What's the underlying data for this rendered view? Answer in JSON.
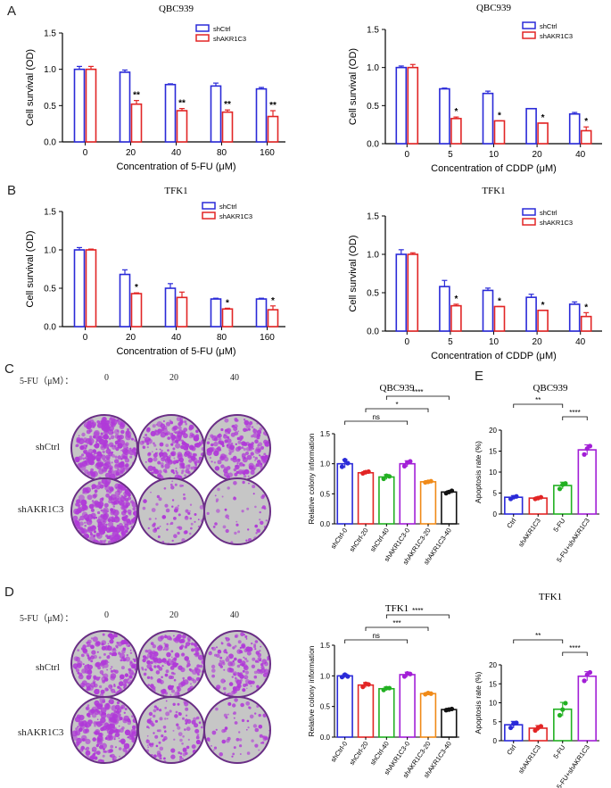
{
  "panel_labels": {
    "A": "A",
    "B": "B",
    "C": "C",
    "D": "D",
    "E": "E"
  },
  "colors": {
    "blue": "#2a2ad8",
    "red": "#e22525",
    "green": "#22b022",
    "purple": "#a21ed6",
    "orange": "#f08a18",
    "black": "#111111",
    "dish": "#b03ad8"
  },
  "plates": {
    "C": {
      "header": "5-FU（μM）：",
      "doses": [
        "0",
        "20",
        "40"
      ],
      "rows": [
        "shCtrl",
        "shAKR1C3"
      ],
      "density": [
        [
          0.62,
          0.5,
          0.42
        ],
        [
          0.62,
          0.12,
          0.06
        ]
      ]
    },
    "D": {
      "header": "5-FU（μM）：",
      "doses": [
        "0",
        "20",
        "40"
      ],
      "rows": [
        "shCtrl",
        "shAKR1C3"
      ],
      "density": [
        [
          0.45,
          0.4,
          0.35
        ],
        [
          0.5,
          0.2,
          0.1
        ]
      ]
    }
  },
  "chart_data": [
    {
      "id": "A1",
      "type": "bar",
      "title": "QBC939",
      "xlabel": "Concentration of 5-FU (μM)",
      "ylabel": "Cell survival (OD)",
      "categories": [
        "0",
        "20",
        "40",
        "80",
        "160"
      ],
      "ylim": [
        0,
        1.5
      ],
      "yticks": [
        "0.0",
        "0.5",
        "1.0",
        "1.5"
      ],
      "series": [
        {
          "name": "shCtrl",
          "color": "#2a2ad8",
          "values": [
            1.0,
            0.96,
            0.79,
            0.77,
            0.73
          ],
          "err": [
            0.04,
            0.03,
            0.01,
            0.04,
            0.02
          ]
        },
        {
          "name": "shAKR1C3",
          "color": "#e22525",
          "values": [
            1.0,
            0.52,
            0.43,
            0.41,
            0.35
          ],
          "err": [
            0.04,
            0.05,
            0.03,
            0.03,
            0.08
          ]
        }
      ],
      "annotations": [
        "",
        "**",
        "**",
        "**",
        "**"
      ]
    },
    {
      "id": "A2",
      "type": "bar",
      "title": "QBC939",
      "xlabel": "Concentration of CDDP (μM)",
      "ylabel": "Cell survival (OD)",
      "categories": [
        "0",
        "5",
        "10",
        "20",
        "40"
      ],
      "ylim": [
        0,
        1.5
      ],
      "yticks": [
        "0.0",
        "0.5",
        "1.0",
        "1.5"
      ],
      "series": [
        {
          "name": "shCtrl",
          "color": "#2a2ad8",
          "values": [
            1.0,
            0.72,
            0.66,
            0.46,
            0.39
          ],
          "err": [
            0.02,
            0.01,
            0.03,
            0.0,
            0.02
          ]
        },
        {
          "name": "shAKR1C3",
          "color": "#e22525",
          "values": [
            1.0,
            0.33,
            0.3,
            0.27,
            0.17
          ],
          "err": [
            0.04,
            0.02,
            0.0,
            0.0,
            0.05
          ]
        }
      ],
      "annotations": [
        "",
        "*",
        "*",
        "*",
        "*"
      ]
    },
    {
      "id": "B1",
      "type": "bar",
      "title": "TFK1",
      "xlabel": "Concentration of 5-FU (μM)",
      "ylabel": "Cell survival (OD)",
      "categories": [
        "0",
        "20",
        "40",
        "80",
        "160"
      ],
      "ylim": [
        0,
        1.5
      ],
      "yticks": [
        "0.0",
        "0.5",
        "1.0",
        "1.5"
      ],
      "series": [
        {
          "name": "shCtrl",
          "color": "#2a2ad8",
          "values": [
            1.0,
            0.68,
            0.5,
            0.36,
            0.36
          ],
          "err": [
            0.03,
            0.06,
            0.06,
            0.01,
            0.01
          ]
        },
        {
          "name": "shAKR1C3",
          "color": "#e22525",
          "values": [
            1.0,
            0.43,
            0.38,
            0.23,
            0.22
          ],
          "err": [
            0.01,
            0.01,
            0.07,
            0.01,
            0.05
          ]
        }
      ],
      "annotations": [
        "",
        "*",
        "",
        "*",
        "*"
      ]
    },
    {
      "id": "B2",
      "type": "bar",
      "title": "TFK1",
      "xlabel": "Concentration of CDDP (μM)",
      "ylabel": "Cell survival (OD)",
      "categories": [
        "0",
        "5",
        "10",
        "20",
        "40"
      ],
      "ylim": [
        0,
        1.5
      ],
      "yticks": [
        "0.0",
        "0.5",
        "1.0",
        "1.5"
      ],
      "series": [
        {
          "name": "shCtrl",
          "color": "#2a2ad8",
          "values": [
            1.0,
            0.58,
            0.53,
            0.44,
            0.35
          ],
          "err": [
            0.06,
            0.08,
            0.03,
            0.04,
            0.03
          ]
        },
        {
          "name": "shAKR1C3",
          "color": "#e22525",
          "values": [
            1.0,
            0.33,
            0.32,
            0.27,
            0.19
          ],
          "err": [
            0.02,
            0.02,
            0.0,
            0.0,
            0.05
          ]
        }
      ],
      "annotations": [
        "",
        "*",
        "*",
        "*",
        "*"
      ]
    },
    {
      "id": "C2",
      "type": "bar",
      "title": "QBC939",
      "ylabel": "Relative colony information",
      "categories": [
        "shCtrl-0",
        "shCtrl-20",
        "shCtrl-40",
        "shAKR1C3-0",
        "shAKR1C3-20",
        "shAKR1C3-40"
      ],
      "colors": [
        "#2a2ad8",
        "#e22525",
        "#22b022",
        "#a21ed6",
        "#f08a18",
        "#111111"
      ],
      "values": [
        1.0,
        0.85,
        0.78,
        1.0,
        0.7,
        0.53
      ],
      "err": [
        0.07,
        0.03,
        0.04,
        0.05,
        0.02,
        0.02
      ],
      "points": [
        [
          0.95,
          1.06,
          1.01
        ],
        [
          0.84,
          0.86,
          0.87
        ],
        [
          0.75,
          0.8,
          0.79
        ],
        [
          0.96,
          1.02,
          1.04
        ],
        [
          0.69,
          0.7,
          0.71
        ],
        [
          0.51,
          0.53,
          0.55
        ]
      ],
      "ylim": [
        0,
        1.5
      ],
      "yticks": [
        "0.0",
        "0.5",
        "1.0",
        "1.5"
      ],
      "brackets": [
        {
          "from": 0,
          "to": 3,
          "label": "ns"
        },
        {
          "from": 1,
          "to": 4,
          "label": "*"
        },
        {
          "from": 2,
          "to": 5,
          "label": "****"
        }
      ]
    },
    {
      "id": "D2",
      "type": "bar",
      "title": "TFK1",
      "ylabel": "Relative colony information",
      "categories": [
        "shCtrl-0",
        "shCtrl-20",
        "shCtrl-40",
        "shAKR1C3-0",
        "shAKR1C3-20",
        "shAKR1C3-40"
      ],
      "colors": [
        "#2a2ad8",
        "#e22525",
        "#22b022",
        "#a21ed6",
        "#f08a18",
        "#111111"
      ],
      "values": [
        1.0,
        0.85,
        0.79,
        1.02,
        0.71,
        0.45
      ],
      "err": [
        0.03,
        0.04,
        0.03,
        0.04,
        0.02,
        0.02
      ],
      "points": [
        [
          0.98,
          1.02,
          0.99
        ],
        [
          0.82,
          0.87,
          0.86
        ],
        [
          0.77,
          0.8,
          0.8
        ],
        [
          0.99,
          1.04,
          1.03
        ],
        [
          0.7,
          0.72,
          0.71
        ],
        [
          0.44,
          0.45,
          0.46
        ]
      ],
      "ylim": [
        0,
        1.5
      ],
      "yticks": [
        "0.0",
        "0.5",
        "1.0",
        "1.5"
      ],
      "brackets": [
        {
          "from": 0,
          "to": 3,
          "label": "ns"
        },
        {
          "from": 1,
          "to": 4,
          "label": "***"
        },
        {
          "from": 2,
          "to": 5,
          "label": "****"
        }
      ]
    },
    {
      "id": "E1",
      "type": "bar",
      "title": "QBC939",
      "ylabel": "Apoptosis rate (%)",
      "categories": [
        "Ctrl",
        "shAKR1C3",
        "5-FU",
        "5-FU+shAKR1C3"
      ],
      "colors": [
        "#2a2ad8",
        "#e22525",
        "#22b022",
        "#a21ed6"
      ],
      "values": [
        4.0,
        3.8,
        6.8,
        15.3
      ],
      "err": [
        0.4,
        0.3,
        0.8,
        1.2
      ],
      "points": [
        [
          3.6,
          4.0,
          4.2
        ],
        [
          3.6,
          3.8,
          4.0
        ],
        [
          6.0,
          7.0,
          7.3
        ],
        [
          14.2,
          15.6,
          16.2
        ]
      ],
      "ylim": [
        0,
        20
      ],
      "yticks": [
        "0",
        "5",
        "10",
        "15",
        "20"
      ],
      "brackets": [
        {
          "from": 0,
          "to": 2,
          "label": "**"
        },
        {
          "from": 2,
          "to": 3,
          "label": "****"
        }
      ]
    },
    {
      "id": "E2",
      "type": "bar",
      "title": "TFK1",
      "ylabel": "Apoptosis rate (%)",
      "categories": [
        "Ctrl",
        "shAKR1C3",
        "5-FU",
        "5-FU+shAKR1C3"
      ],
      "colors": [
        "#2a2ad8",
        "#e22525",
        "#22b022",
        "#a21ed6"
      ],
      "values": [
        4.2,
        3.3,
        8.3,
        17.0
      ],
      "err": [
        0.9,
        0.7,
        1.8,
        1.2
      ],
      "points": [
        [
          3.4,
          4.5,
          4.7
        ],
        [
          2.7,
          3.4,
          3.8
        ],
        [
          6.7,
          8.2,
          9.9
        ],
        [
          15.8,
          17.4,
          18.0
        ]
      ],
      "ylim": [
        0,
        20
      ],
      "yticks": [
        "0",
        "5",
        "10",
        "15",
        "20"
      ],
      "brackets": [
        {
          "from": 0,
          "to": 2,
          "label": "**"
        },
        {
          "from": 2,
          "to": 3,
          "label": "****"
        }
      ]
    }
  ]
}
